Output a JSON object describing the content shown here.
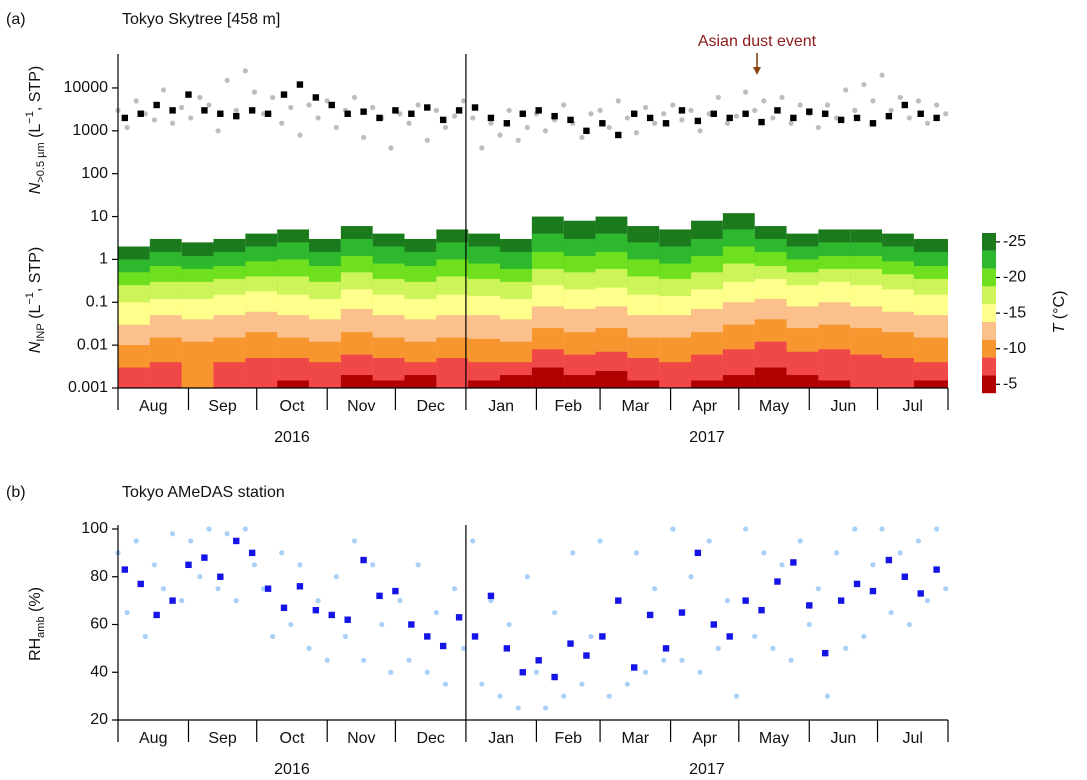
{
  "chart_data": [
    {
      "type": "composite",
      "panel_label": "(a)",
      "title": "Tokyo Skytree [458 m]",
      "annotation": {
        "text": "Asian dust event",
        "x": 281
      },
      "xlim": [
        0,
        365
      ],
      "months": [
        "Aug",
        "Sep",
        "Oct",
        "Nov",
        "Dec",
        "Jan",
        "Feb",
        "Mar",
        "Apr",
        "May",
        "Jun",
        "Jul"
      ],
      "month_edges": [
        0,
        31,
        61,
        92,
        122,
        153,
        184,
        212,
        243,
        273,
        304,
        334,
        365
      ],
      "years": [
        "2016",
        "2017"
      ],
      "year_edges": [
        0,
        153,
        365
      ],
      "log": true,
      "ylim": [
        0.001,
        50000
      ],
      "yticks": [
        0.001,
        0.01,
        0.1,
        1,
        10,
        100,
        1000,
        10000
      ],
      "ylabel_upper": {
        "main": "N",
        "sub": ">0.5 µm",
        "rest": " (L",
        "sup": "−1",
        "end": ", STP)"
      },
      "ylabel_lower": {
        "main": "N",
        "sub": "INP",
        "rest": " (L",
        "sup": "−1",
        "end": ", STP)"
      },
      "series": [
        {
          "kind": "dots",
          "color": "#bdbdbd",
          "x": [
            0,
            4,
            8,
            12,
            16,
            20,
            24,
            28,
            32,
            36,
            40,
            44,
            48,
            52,
            56,
            60,
            64,
            68,
            72,
            76,
            80,
            84,
            88,
            92,
            96,
            100,
            104,
            108,
            112,
            116,
            120,
            124,
            128,
            132,
            136,
            140,
            144,
            148,
            152,
            156,
            160,
            164,
            168,
            172,
            176,
            180,
            184,
            188,
            192,
            196,
            200,
            204,
            208,
            212,
            216,
            220,
            224,
            228,
            232,
            236,
            240,
            244,
            248,
            252,
            256,
            260,
            264,
            268,
            272,
            276,
            280,
            284,
            288,
            292,
            296,
            300,
            304,
            308,
            312,
            316,
            320,
            324,
            328,
            332,
            336,
            340,
            344,
            348,
            352,
            356,
            360,
            364
          ],
          "values": [
            3000,
            1200,
            5000,
            2500,
            1800,
            9000,
            1500,
            3500,
            2000,
            6000,
            4000,
            1000,
            15000,
            3000,
            25000,
            8000,
            2500,
            6000,
            1500,
            3500,
            800,
            4000,
            2000,
            5000,
            1200,
            3000,
            6000,
            700,
            3500,
            2000,
            400,
            2500,
            1500,
            4000,
            600,
            3000,
            1200,
            2200,
            5000,
            2000,
            400,
            1500,
            800,
            3000,
            600,
            1200,
            2500,
            1000,
            1800,
            4000,
            1500,
            700,
            2500,
            3000,
            1200,
            5000,
            2000,
            900,
            3500,
            1500,
            2500,
            4000,
            1800,
            3000,
            1000,
            2500,
            6000,
            1500,
            2200,
            8000,
            3000,
            5000,
            2000,
            6000,
            1500,
            4000,
            2500,
            1200,
            4000,
            2000,
            9000,
            3000,
            12000,
            5000,
            20000,
            3000,
            6000,
            2000,
            5000,
            1500,
            4000,
            2500
          ]
        },
        {
          "kind": "squares",
          "color": "#000000",
          "x": [
            3,
            10,
            17,
            24,
            31,
            38,
            45,
            52,
            59,
            66,
            73,
            80,
            87,
            94,
            101,
            108,
            115,
            122,
            129,
            136,
            143,
            150,
            157,
            164,
            171,
            178,
            185,
            192,
            199,
            206,
            213,
            220,
            227,
            234,
            241,
            248,
            255,
            262,
            269,
            276,
            283,
            290,
            297,
            304,
            311,
            318,
            325,
            332,
            339,
            346,
            353,
            360
          ],
          "values": [
            2000,
            2500,
            4000,
            3000,
            7000,
            3000,
            2500,
            2200,
            3000,
            2500,
            7000,
            12000,
            6000,
            4000,
            2500,
            2800,
            2000,
            3000,
            2500,
            3500,
            1800,
            3000,
            3500,
            2000,
            1500,
            2500,
            3000,
            2200,
            1800,
            1000,
            1500,
            800,
            2500,
            2000,
            1500,
            3000,
            1700,
            2500,
            2000,
            2500,
            1600,
            3000,
            2000,
            2800,
            2500,
            1800,
            2000,
            1500,
            2200,
            4000,
            2500,
            2000
          ]
        }
      ],
      "inp": {
        "bar_edges": [
          0,
          14,
          28,
          42,
          56,
          70,
          84,
          98,
          112,
          126,
          140,
          154,
          168,
          182,
          196,
          210,
          224,
          238,
          252,
          266,
          280,
          294,
          308,
          322,
          336,
          350,
          365
        ],
        "colorbar_label": {
          "main": "T",
          "rest": " (°C)"
        },
        "colorbar_ticks": [
          -25,
          -20,
          -15,
          -10,
          -5
        ],
        "levels": [
          {
            "temperature": -25,
            "color": "#1b7a1b",
            "values": [
              2,
              3,
              2.5,
              3,
              4,
              5,
              3,
              6,
              4,
              3,
              5,
              4,
              3,
              10,
              8,
              10,
              6,
              5,
              8,
              12,
              6,
              4,
              5,
              5,
              4,
              3
            ]
          },
          {
            "temperature": -22.5,
            "color": "#2eb82e",
            "values": [
              1,
              1.5,
              1.2,
              1.5,
              2,
              2.5,
              1.5,
              3,
              2,
              1.5,
              2.5,
              2,
              1.5,
              4,
              3,
              4,
              2.5,
              2,
              3,
              5,
              3,
              2,
              2.5,
              2.5,
              2,
              1.5
            ]
          },
          {
            "temperature": -20,
            "color": "#6ee01e",
            "values": [
              0.5,
              0.7,
              0.6,
              0.7,
              0.9,
              1,
              0.7,
              1.2,
              0.8,
              0.7,
              1,
              0.8,
              0.6,
              1.5,
              1.2,
              1.5,
              1,
              0.8,
              1.2,
              2,
              1.5,
              1,
              1.2,
              1.2,
              0.9,
              0.7
            ]
          },
          {
            "temperature": -17.5,
            "color": "#cdf55a",
            "values": [
              0.25,
              0.3,
              0.3,
              0.35,
              0.4,
              0.4,
              0.3,
              0.5,
              0.35,
              0.3,
              0.4,
              0.35,
              0.3,
              0.6,
              0.5,
              0.6,
              0.4,
              0.35,
              0.5,
              0.8,
              0.7,
              0.5,
              0.6,
              0.6,
              0.45,
              0.35
            ]
          },
          {
            "temperature": -15,
            "color": "#ffff8c",
            "values": [
              0.1,
              0.12,
              0.12,
              0.15,
              0.18,
              0.15,
              0.12,
              0.2,
              0.15,
              0.12,
              0.15,
              0.14,
              0.12,
              0.25,
              0.2,
              0.22,
              0.15,
              0.14,
              0.2,
              0.3,
              0.35,
              0.25,
              0.3,
              0.25,
              0.2,
              0.15
            ]
          },
          {
            "temperature": -12.5,
            "color": "#fbc08c",
            "values": [
              0.03,
              0.05,
              0.04,
              0.05,
              0.06,
              0.05,
              0.04,
              0.07,
              0.05,
              0.04,
              0.05,
              0.05,
              0.04,
              0.08,
              0.07,
              0.08,
              0.05,
              0.05,
              0.07,
              0.1,
              0.12,
              0.08,
              0.1,
              0.08,
              0.06,
              0.05
            ]
          },
          {
            "temperature": -10,
            "color": "#f7962e",
            "values": [
              0.01,
              0.015,
              0.012,
              0.015,
              0.02,
              0.015,
              0.012,
              0.02,
              0.015,
              0.012,
              0.015,
              0.014,
              0.012,
              0.025,
              0.02,
              0.025,
              0.015,
              0.015,
              0.02,
              0.03,
              0.04,
              0.025,
              0.03,
              0.025,
              0.02,
              0.015
            ]
          },
          {
            "temperature": -7.5,
            "color": "#f04848",
            "values": [
              0.003,
              0.004,
              null,
              0.004,
              0.005,
              0.005,
              0.004,
              0.006,
              0.005,
              0.004,
              0.005,
              0.004,
              0.004,
              0.008,
              0.006,
              0.007,
              0.005,
              0.004,
              0.006,
              0.008,
              0.012,
              0.007,
              0.008,
              0.006,
              0.005,
              0.004
            ]
          },
          {
            "temperature": -5,
            "color": "#b00000",
            "values": [
              null,
              null,
              null,
              null,
              null,
              0.0015,
              null,
              0.002,
              0.0015,
              0.002,
              null,
              0.0015,
              0.002,
              0.003,
              0.002,
              0.0025,
              0.0015,
              null,
              0.0015,
              0.002,
              0.003,
              0.002,
              0.0015,
              null,
              null,
              0.0015
            ]
          }
        ]
      }
    },
    {
      "type": "scatter",
      "panel_label": "(b)",
      "title": "Tokyo AMeDAS station",
      "xlim": [
        0,
        365
      ],
      "months": [
        "Aug",
        "Sep",
        "Oct",
        "Nov",
        "Dec",
        "Jan",
        "Feb",
        "Mar",
        "Apr",
        "May",
        "Jun",
        "Jul"
      ],
      "month_edges": [
        0,
        31,
        61,
        92,
        122,
        153,
        184,
        212,
        243,
        273,
        304,
        334,
        365
      ],
      "years": [
        "2016",
        "2017"
      ],
      "year_edges": [
        0,
        153,
        365
      ],
      "ylim": [
        20,
        100
      ],
      "yticks": [
        20,
        40,
        60,
        80,
        100
      ],
      "ylabel": {
        "main": "RH",
        "sub": "amb",
        "rest": " (%)"
      },
      "series": [
        {
          "kind": "dots",
          "color": "#a9d1f7",
          "x": [
            0,
            4,
            8,
            12,
            16,
            20,
            24,
            28,
            32,
            36,
            40,
            44,
            48,
            52,
            56,
            60,
            64,
            68,
            72,
            76,
            80,
            84,
            88,
            92,
            96,
            100,
            104,
            108,
            112,
            116,
            120,
            124,
            128,
            132,
            136,
            140,
            144,
            148,
            152,
            156,
            160,
            164,
            168,
            172,
            176,
            180,
            184,
            188,
            192,
            196,
            200,
            204,
            208,
            212,
            216,
            220,
            224,
            228,
            232,
            236,
            240,
            244,
            248,
            252,
            256,
            260,
            264,
            268,
            272,
            276,
            280,
            284,
            288,
            292,
            296,
            300,
            304,
            308,
            312,
            316,
            320,
            324,
            328,
            332,
            336,
            340,
            344,
            348,
            352,
            356,
            360,
            364
          ],
          "values": [
            90,
            65,
            95,
            55,
            85,
            75,
            98,
            70,
            95,
            80,
            100,
            75,
            98,
            70,
            100,
            85,
            75,
            55,
            90,
            60,
            85,
            50,
            70,
            45,
            80,
            55,
            95,
            45,
            85,
            60,
            40,
            70,
            45,
            85,
            40,
            65,
            35,
            75,
            50,
            95,
            35,
            70,
            30,
            60,
            25,
            80,
            40,
            25,
            65,
            30,
            90,
            35,
            55,
            95,
            30,
            70,
            35,
            90,
            40,
            75,
            45,
            100,
            45,
            80,
            40,
            95,
            50,
            70,
            30,
            100,
            55,
            90,
            50,
            85,
            45,
            95,
            60,
            75,
            30,
            90,
            50,
            100,
            55,
            85,
            100,
            65,
            90,
            60,
            95,
            70,
            100,
            75
          ]
        },
        {
          "kind": "squares",
          "color": "#1414e6",
          "x": [
            3,
            10,
            17,
            24,
            31,
            38,
            45,
            52,
            59,
            66,
            73,
            80,
            87,
            94,
            101,
            108,
            115,
            122,
            129,
            136,
            143,
            150,
            157,
            164,
            171,
            178,
            185,
            192,
            199,
            206,
            213,
            220,
            227,
            234,
            241,
            248,
            255,
            262,
            269,
            276,
            283,
            290,
            297,
            304,
            311,
            318,
            325,
            332,
            339,
            346,
            353,
            360
          ],
          "values": [
            83,
            77,
            64,
            70,
            85,
            88,
            80,
            95,
            90,
            75,
            67,
            76,
            66,
            64,
            62,
            87,
            72,
            74,
            60,
            55,
            51,
            63,
            55,
            72,
            50,
            40,
            45,
            38,
            52,
            47,
            55,
            70,
            42,
            64,
            50,
            65,
            90,
            60,
            55,
            70,
            66,
            78,
            86,
            68,
            48,
            70,
            77,
            74,
            87,
            80,
            73,
            83
          ]
        }
      ]
    }
  ]
}
